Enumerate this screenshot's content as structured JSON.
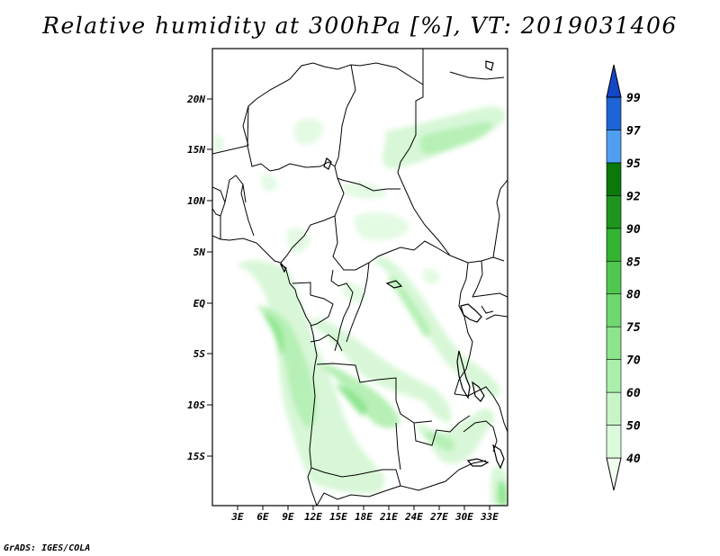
{
  "title": "Relative humidity at 300hPa [%], VT: 2019031406",
  "credit": "GrADS: IGES/COLA",
  "map": {
    "lon_labels": [
      "3E",
      "6E",
      "9E",
      "12E",
      "15E",
      "18E",
      "21E",
      "24E",
      "27E",
      "30E",
      "33E"
    ],
    "lat_labels": [
      "20N",
      "15N",
      "10N",
      "5N",
      "EQ",
      "5S",
      "10S",
      "15S"
    ]
  },
  "colorbar": {
    "levels": [
      "40",
      "50",
      "60",
      "70",
      "75",
      "80",
      "85",
      "90",
      "92",
      "95",
      "97",
      "99"
    ],
    "colors": [
      "#f0fef0",
      "#dcfadc",
      "#c8f5c8",
      "#aaefaa",
      "#8ce48c",
      "#6ed76e",
      "#50c850",
      "#32b432",
      "#1e961e",
      "#0a780a",
      "#4f9ff0",
      "#1e64d7",
      "#1446c8"
    ]
  }
}
